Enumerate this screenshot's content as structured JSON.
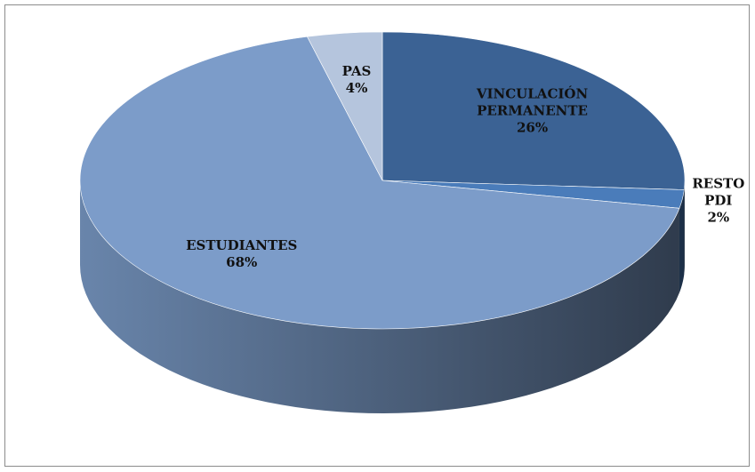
{
  "chart_data": {
    "type": "pie3d",
    "categories": [
      "VINCULACIÓN PERMANENTE",
      "RESTO PDI",
      "ESTUDIANTES",
      "PAS"
    ],
    "values": [
      26,
      2,
      68,
      4
    ],
    "value_labels": [
      "26%",
      "2%",
      "68%",
      "4%"
    ],
    "colors": [
      "#3b6294",
      "#4a7cba",
      "#7c9cc9",
      "#b5c5dd"
    ]
  }
}
